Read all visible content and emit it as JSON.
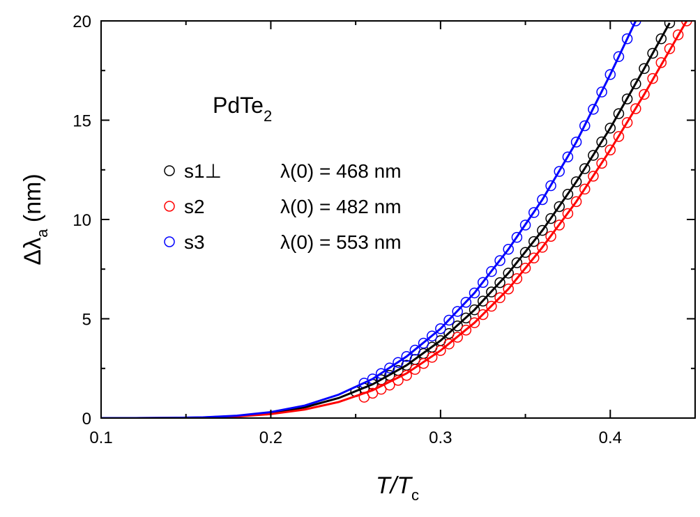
{
  "chart_data": {
    "type": "scatter",
    "title": [
      "PdTe",
      "2"
    ],
    "xlabel": [
      "T/T",
      "c"
    ],
    "ylabel": [
      "Δλ",
      "a",
      " (nm)"
    ],
    "xlim": [
      0.1,
      0.45
    ],
    "ylim": [
      0,
      20
    ],
    "xticks": [
      0.1,
      0.2,
      0.3,
      0.4
    ],
    "yticks": [
      0,
      5,
      10,
      15,
      20
    ],
    "xminorticks": [
      0.15,
      0.25,
      0.35,
      0.45
    ],
    "yminorticks": [
      2.5,
      7.5,
      12.5,
      17.5
    ],
    "series": [
      {
        "name": "s1⊥",
        "note": "λ(0) = 468 nm",
        "color": "#000000",
        "x": [
          0.25,
          0.255,
          0.26,
          0.265,
          0.27,
          0.275,
          0.28,
          0.285,
          0.29,
          0.295,
          0.3,
          0.305,
          0.31,
          0.315,
          0.32,
          0.325,
          0.33,
          0.335,
          0.34,
          0.345,
          0.35,
          0.355,
          0.36,
          0.365,
          0.37,
          0.375,
          0.38,
          0.385,
          0.39,
          0.395,
          0.4,
          0.405,
          0.41,
          0.415,
          0.42,
          0.425,
          0.43,
          0.435
        ],
        "values": [
          1.33,
          1.5,
          1.7,
          1.93,
          2.15,
          2.4,
          2.66,
          2.95,
          3.25,
          3.57,
          3.9,
          4.26,
          4.64,
          5.04,
          5.45,
          5.89,
          6.35,
          6.82,
          7.3,
          7.82,
          8.34,
          8.89,
          9.45,
          10.05,
          10.65,
          11.27,
          11.9,
          12.56,
          13.23,
          13.91,
          14.6,
          15.33,
          16.07,
          16.83,
          17.6,
          18.37,
          19.1,
          19.9
        ],
        "fit_x": [
          0.1,
          0.12,
          0.14,
          0.16,
          0.18,
          0.2,
          0.22,
          0.24,
          0.26,
          0.28,
          0.3,
          0.32,
          0.34,
          0.36,
          0.38,
          0.4,
          0.42,
          0.435
        ],
        "fit_values": [
          0,
          0.001,
          0.007,
          0.032,
          0.1,
          0.256,
          0.54,
          1.01,
          1.7,
          2.66,
          3.9,
          5.45,
          7.3,
          9.45,
          11.9,
          14.6,
          17.6,
          19.9
        ]
      },
      {
        "name": "s2",
        "note": "λ(0) = 482 nm",
        "color": "#ff0000",
        "x": [
          0.255,
          0.26,
          0.265,
          0.27,
          0.275,
          0.28,
          0.285,
          0.29,
          0.295,
          0.3,
          0.305,
          0.31,
          0.315,
          0.32,
          0.325,
          0.33,
          0.335,
          0.34,
          0.345,
          0.35,
          0.355,
          0.36,
          0.365,
          0.37,
          0.375,
          0.38,
          0.385,
          0.39,
          0.395,
          0.4,
          0.405,
          0.41,
          0.415,
          0.42,
          0.425,
          0.43,
          0.435,
          0.44,
          0.445
        ],
        "values": [
          1.05,
          1.25,
          1.45,
          1.66,
          1.9,
          2.15,
          2.45,
          2.75,
          3.06,
          3.4,
          3.73,
          4.07,
          4.43,
          4.8,
          5.21,
          5.63,
          6.06,
          6.5,
          7.02,
          7.55,
          8.06,
          8.6,
          9.15,
          9.72,
          10.3,
          10.9,
          11.53,
          12.18,
          12.83,
          13.5,
          14.18,
          14.88,
          15.58,
          16.3,
          17.1,
          17.9,
          18.6,
          19.3,
          20
        ],
        "fit_x": [
          0.1,
          0.12,
          0.14,
          0.16,
          0.18,
          0.2,
          0.22,
          0.24,
          0.26,
          0.28,
          0.3,
          0.32,
          0.34,
          0.36,
          0.38,
          0.4,
          0.42,
          0.445
        ],
        "fit_values": [
          0,
          0.001,
          0.005,
          0.024,
          0.08,
          0.2,
          0.43,
          0.81,
          1.4,
          2.25,
          3.4,
          4.8,
          6.5,
          8.6,
          10.9,
          13.5,
          16.3,
          20
        ]
      },
      {
        "name": "s3",
        "note": "λ(0) = 553 nm",
        "color": "#0000ff",
        "x": [
          0.255,
          0.26,
          0.265,
          0.27,
          0.275,
          0.28,
          0.285,
          0.29,
          0.295,
          0.3,
          0.305,
          0.31,
          0.315,
          0.32,
          0.325,
          0.33,
          0.335,
          0.34,
          0.345,
          0.35,
          0.355,
          0.36,
          0.365,
          0.37,
          0.375,
          0.38,
          0.385,
          0.39,
          0.395,
          0.4,
          0.405,
          0.41,
          0.415
        ],
        "values": [
          1.76,
          1.97,
          2.24,
          2.52,
          2.8,
          3.1,
          3.42,
          3.77,
          4.13,
          4.5,
          4.93,
          5.37,
          5.83,
          6.3,
          6.83,
          7.38,
          7.93,
          8.5,
          9.1,
          9.72,
          10.35,
          11,
          11.7,
          12.42,
          13.15,
          13.9,
          14.72,
          15.55,
          16.42,
          17.3,
          18.2,
          19.1,
          20
        ],
        "fit_x": [
          0.1,
          0.12,
          0.14,
          0.16,
          0.18,
          0.2,
          0.22,
          0.24,
          0.26,
          0.28,
          0.3,
          0.32,
          0.34,
          0.36,
          0.38,
          0.4,
          0.415
        ],
        "fit_values": [
          0,
          0.001,
          0.008,
          0.037,
          0.12,
          0.3,
          0.63,
          1.18,
          1.97,
          3.1,
          4.5,
          6.3,
          8.5,
          11,
          13.9,
          17.3,
          20
        ]
      }
    ]
  }
}
